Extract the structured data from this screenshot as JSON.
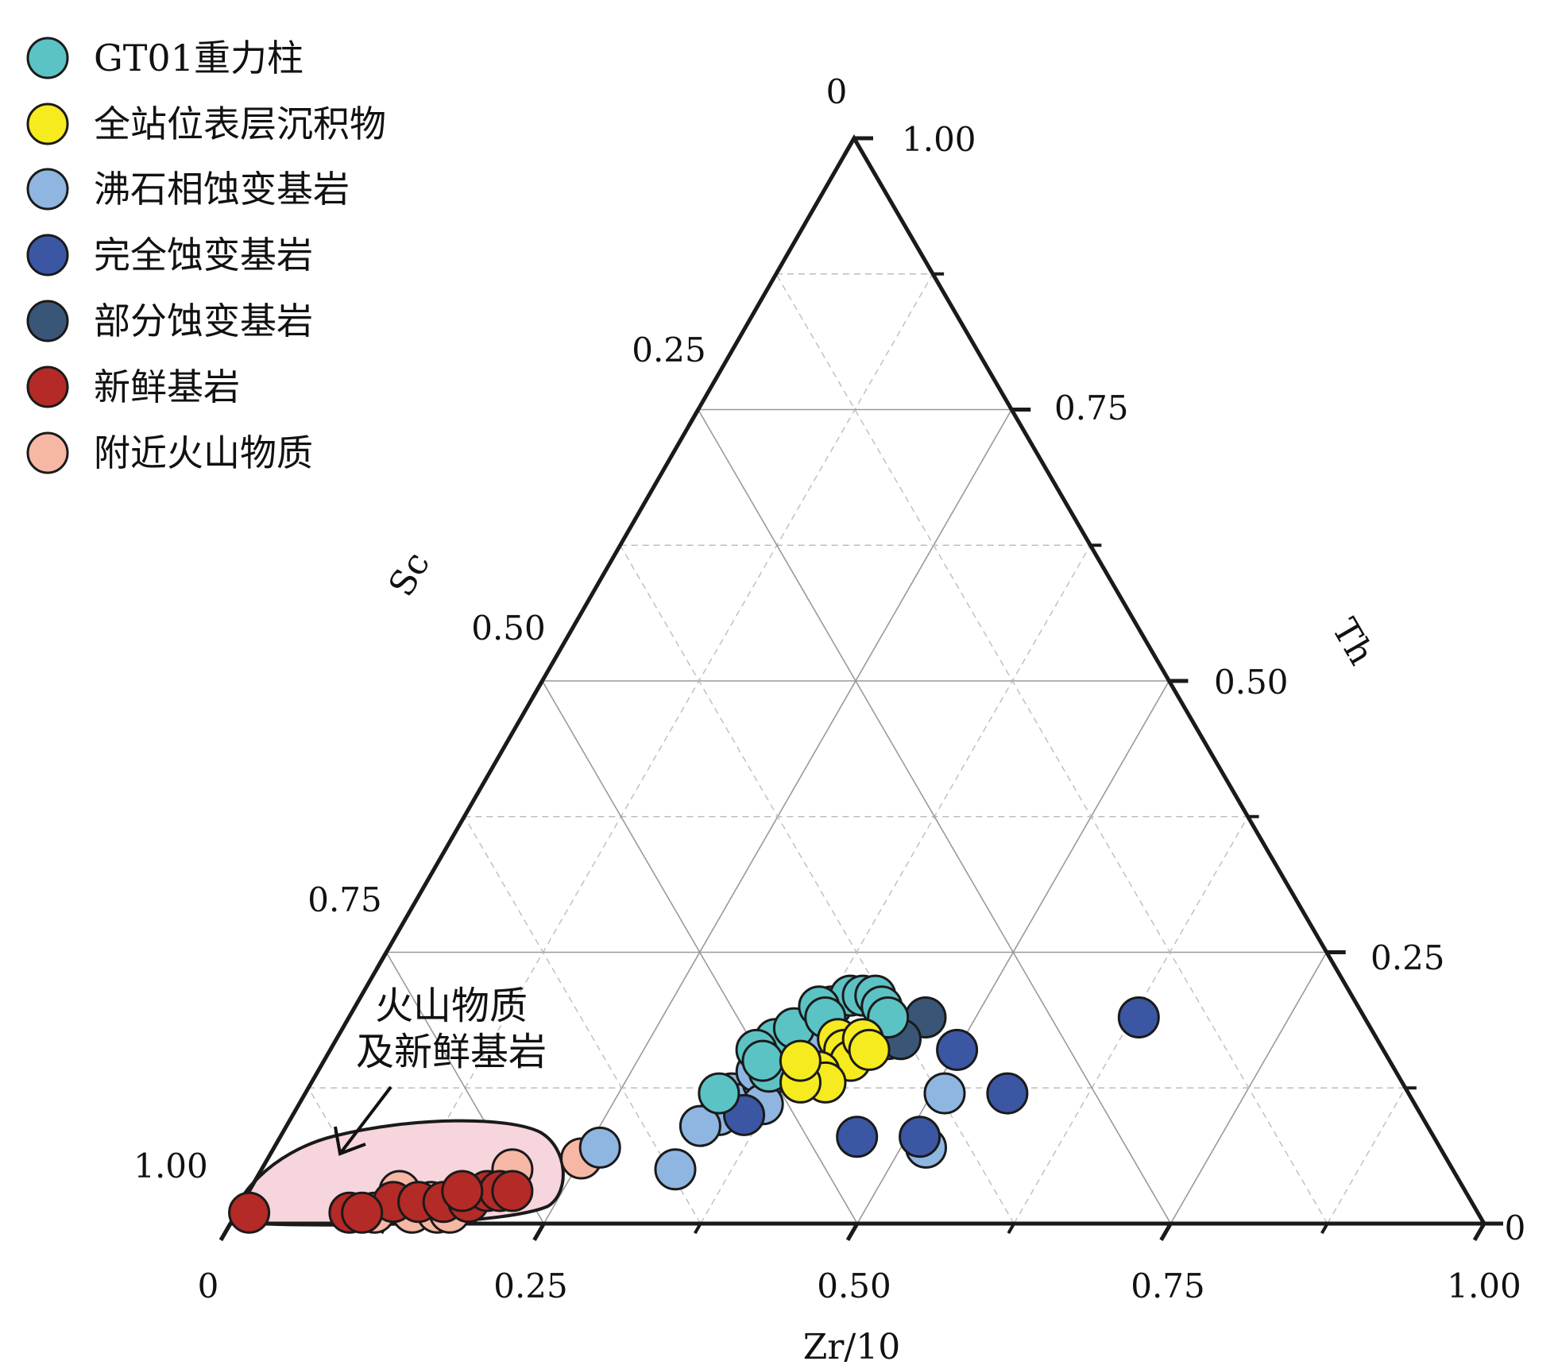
{
  "chart_data": {
    "type": "scatter",
    "subtype": "ternary",
    "axes": {
      "bottom": {
        "label": "Zr/10",
        "ticks": [
          "0",
          "0.25",
          "0.50",
          "0.75",
          "1.00"
        ]
      },
      "left": {
        "label": "Sc",
        "ticks": [
          "0",
          "0.25",
          "0.50",
          "0.75",
          "1.00"
        ]
      },
      "right": {
        "label": "Th",
        "ticks": [
          "0",
          "0.25",
          "0.50",
          "0.75",
          "1.00"
        ]
      }
    },
    "grid": true,
    "legend_position": "top-left",
    "annotation": {
      "lines": [
        "火山物质",
        "及新鲜基岩"
      ]
    },
    "field_fill_color": "#f7d5dc",
    "series": [
      {
        "name": "GT01重力柱",
        "color": "#5cc3c5",
        "points": [
          [
            0.33,
            0.12
          ],
          [
            0.35,
            0.17
          ],
          [
            0.36,
            0.18
          ],
          [
            0.38,
            0.2
          ],
          [
            0.39,
            0.21
          ],
          [
            0.4,
            0.21
          ],
          [
            0.41,
            0.21
          ],
          [
            0.42,
            0.2
          ],
          [
            0.43,
            0.19
          ],
          [
            0.37,
            0.2
          ],
          [
            0.34,
            0.16
          ],
          [
            0.36,
            0.14
          ],
          [
            0.35,
            0.15
          ],
          [
            0.38,
            0.19
          ]
        ]
      },
      {
        "name": "全站位表层沉积物",
        "color": "#f5eb1e",
        "points": [
          [
            0.4,
            0.17
          ],
          [
            0.41,
            0.16
          ],
          [
            0.42,
            0.15
          ],
          [
            0.4,
            0.14
          ],
          [
            0.41,
            0.13
          ],
          [
            0.39,
            0.13
          ],
          [
            0.38,
            0.15
          ],
          [
            0.42,
            0.17
          ],
          [
            0.43,
            0.16
          ]
        ]
      },
      {
        "name": "沸石相蚀变基岩",
        "color": "#8fb6e0",
        "points": [
          [
            0.26,
            0.07
          ],
          [
            0.33,
            0.05
          ],
          [
            0.34,
            0.12
          ],
          [
            0.35,
            0.11
          ],
          [
            0.36,
            0.13
          ],
          [
            0.35,
            0.14
          ],
          [
            0.36,
            0.15
          ],
          [
            0.34,
            0.1
          ],
          [
            0.37,
            0.11
          ],
          [
            0.38,
            0.16
          ],
          [
            0.44,
            0.17
          ],
          [
            0.51,
            0.12
          ],
          [
            0.52,
            0.07
          ],
          [
            0.33,
            0.09
          ]
        ]
      },
      {
        "name": "完全蚀变基岩",
        "color": "#3b57a3",
        "points": [
          [
            0.36,
            0.1
          ],
          [
            0.46,
            0.08
          ],
          [
            0.51,
            0.08
          ],
          [
            0.56,
            0.12
          ],
          [
            0.5,
            0.16
          ],
          [
            0.63,
            0.19
          ]
        ]
      },
      {
        "name": "部分蚀变基岩",
        "color": "#3a5677",
        "points": [
          [
            0.46,
            0.19
          ],
          [
            0.45,
            0.17
          ]
        ]
      },
      {
        "name": "新鲜基岩",
        "color": "#b42a26",
        "points": [
          [
            0.01,
            0.01
          ],
          [
            0.09,
            0.01
          ],
          [
            0.12,
            0.02
          ],
          [
            0.14,
            0.02
          ],
          [
            0.16,
            0.02
          ],
          [
            0.18,
            0.02
          ],
          [
            0.19,
            0.03
          ],
          [
            0.2,
            0.03
          ],
          [
            0.21,
            0.03
          ],
          [
            0.1,
            0.01
          ],
          [
            0.17,
            0.03
          ]
        ]
      },
      {
        "name": "附近火山物质",
        "color": "#f6b8a4",
        "points": [
          [
            0.11,
            0.01
          ],
          [
            0.14,
            0.01
          ],
          [
            0.15,
            0.02
          ],
          [
            0.16,
            0.01
          ],
          [
            0.17,
            0.01
          ],
          [
            0.2,
            0.05
          ],
          [
            0.25,
            0.06
          ],
          [
            0.12,
            0.03
          ]
        ]
      }
    ]
  }
}
